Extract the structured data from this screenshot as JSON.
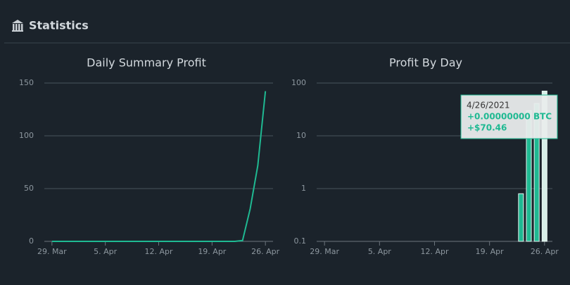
{
  "header": {
    "title": "Statistics"
  },
  "chart_data": [
    {
      "type": "line",
      "title": "Daily Summary Profit",
      "color": "#1fb992",
      "x": [
        "2021-03-29",
        "2021-04-22",
        "2021-04-23",
        "2021-04-24",
        "2021-04-25",
        "2021-04-26"
      ],
      "values": [
        0,
        0,
        0.8,
        30.8,
        71.8,
        142.3
      ],
      "xlim": [
        "2021-03-28",
        "2021-04-27"
      ],
      "xticks": [
        {
          "value": "2021-03-29",
          "label": "29. Mar"
        },
        {
          "value": "2021-04-05",
          "label": "5. Apr"
        },
        {
          "value": "2021-04-12",
          "label": "12. Apr"
        },
        {
          "value": "2021-04-19",
          "label": "19. Apr"
        },
        {
          "value": "2021-04-26",
          "label": "26. Apr"
        }
      ],
      "ylim": [
        0,
        150
      ],
      "yticks": [
        0,
        50,
        100,
        150
      ],
      "grid": true
    },
    {
      "type": "bar",
      "title": "Profit By Day",
      "color": "#1fb992",
      "log_scale": true,
      "x": [
        "2021-04-23",
        "2021-04-24",
        "2021-04-25",
        "2021-04-26"
      ],
      "values": [
        0.8,
        30,
        41,
        70.46
      ],
      "xlim": [
        "2021-03-28",
        "2021-04-27"
      ],
      "xticks": [
        {
          "value": "2021-03-29",
          "label": "29. Mar"
        },
        {
          "value": "2021-04-05",
          "label": "5. Apr"
        },
        {
          "value": "2021-04-12",
          "label": "12. Apr"
        },
        {
          "value": "2021-04-19",
          "label": "19. Apr"
        },
        {
          "value": "2021-04-26",
          "label": "26. Apr"
        }
      ],
      "ylim": [
        0.1,
        100
      ],
      "yticks": [
        0.1,
        1,
        10,
        100
      ],
      "grid": true,
      "tooltip": {
        "date": "4/26/2021",
        "lines": [
          "+0.00000000 BTC",
          "+$70.46"
        ]
      }
    }
  ]
}
